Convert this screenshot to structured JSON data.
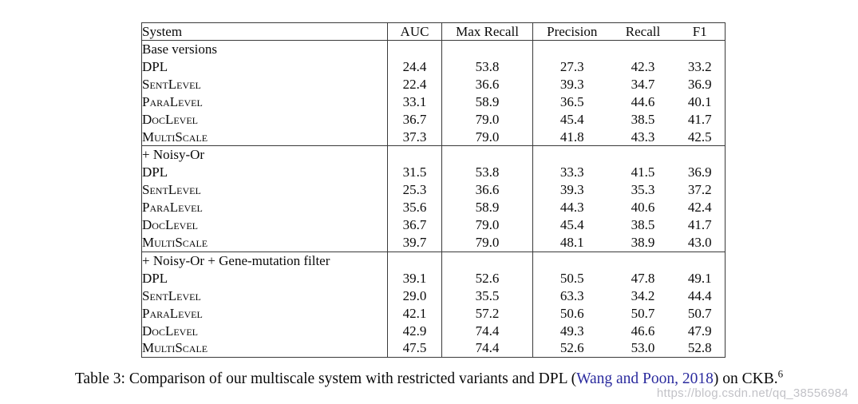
{
  "table": {
    "columns": [
      "System",
      "AUC",
      "Max Recall",
      "Precision",
      "Recall",
      "F1"
    ],
    "sections": [
      {
        "header": "Base versions",
        "rows": [
          {
            "system": "DPL",
            "smallcaps": false,
            "values": [
              "24.4",
              "53.8",
              "27.3",
              "42.3",
              "33.2"
            ],
            "bold": []
          },
          {
            "system": "SentLevel",
            "smallcaps": true,
            "values": [
              "22.4",
              "36.6",
              "39.3",
              "34.7",
              "36.9"
            ],
            "bold": []
          },
          {
            "system": "ParaLevel",
            "smallcaps": true,
            "values": [
              "33.1",
              "58.9",
              "36.5",
              "44.6",
              "40.1"
            ],
            "bold": []
          },
          {
            "system": "DocLevel",
            "smallcaps": true,
            "values": [
              "36.7",
              "79.0",
              "45.4",
              "38.5",
              "41.7"
            ],
            "bold": [
              1
            ]
          },
          {
            "system": "MultiScale",
            "smallcaps": true,
            "values": [
              "37.3",
              "79.0",
              "41.8",
              "43.3",
              "42.5"
            ],
            "bold": [
              0,
              1,
              4
            ]
          }
        ]
      },
      {
        "header": "+ Noisy-Or",
        "rows": [
          {
            "system": "DPL",
            "smallcaps": false,
            "values": [
              "31.5",
              "53.8",
              "33.3",
              "41.5",
              "36.9"
            ],
            "bold": []
          },
          {
            "system": "SentLevel",
            "smallcaps": true,
            "values": [
              "25.3",
              "36.6",
              "39.3",
              "35.3",
              "37.2"
            ],
            "bold": []
          },
          {
            "system": "ParaLevel",
            "smallcaps": true,
            "values": [
              "35.6",
              "58.9",
              "44.3",
              "40.6",
              "42.4"
            ],
            "bold": []
          },
          {
            "system": "DocLevel",
            "smallcaps": true,
            "values": [
              "36.7",
              "79.0",
              "45.4",
              "38.5",
              "41.7"
            ],
            "bold": [
              1
            ]
          },
          {
            "system": "MultiScale",
            "smallcaps": true,
            "values": [
              "39.7",
              "79.0",
              "48.1",
              "38.9",
              "43.0"
            ],
            "bold": [
              0,
              1,
              4
            ]
          }
        ]
      },
      {
        "header": "+ Noisy-Or + Gene-mutation filter",
        "rows": [
          {
            "system": "DPL",
            "smallcaps": false,
            "values": [
              "39.1",
              "52.6",
              "50.5",
              "47.8",
              "49.1"
            ],
            "bold": []
          },
          {
            "system": "SentLevel",
            "smallcaps": true,
            "values": [
              "29.0",
              "35.5",
              "63.3",
              "34.2",
              "44.4"
            ],
            "bold": []
          },
          {
            "system": "ParaLevel",
            "smallcaps": true,
            "values": [
              "42.1",
              "57.2",
              "50.6",
              "50.7",
              "50.7"
            ],
            "bold": []
          },
          {
            "system": "DocLevel",
            "smallcaps": true,
            "values": [
              "42.9",
              "74.4",
              "49.3",
              "46.6",
              "47.9"
            ],
            "bold": [
              1
            ]
          },
          {
            "system": "MultiScale",
            "smallcaps": true,
            "values": [
              "47.5",
              "74.4",
              "52.6",
              "53.0",
              "52.8"
            ],
            "bold": [
              0,
              1,
              4
            ]
          }
        ]
      }
    ]
  },
  "caption": {
    "prefix": "Table 3: Comparison of our multiscale system with restricted variants and DPL (",
    "citation": "Wang and Poon, 2018",
    "suffix": ") on CKB.",
    "footnote_mark": "6"
  },
  "watermark": {
    "text": "https://blog.csdn.net/qq_38556984"
  },
  "colors": {
    "link_blue": "#2B2B9E",
    "table_border": "#3A3A3A",
    "watermark_gray": "#A5A5AC"
  }
}
